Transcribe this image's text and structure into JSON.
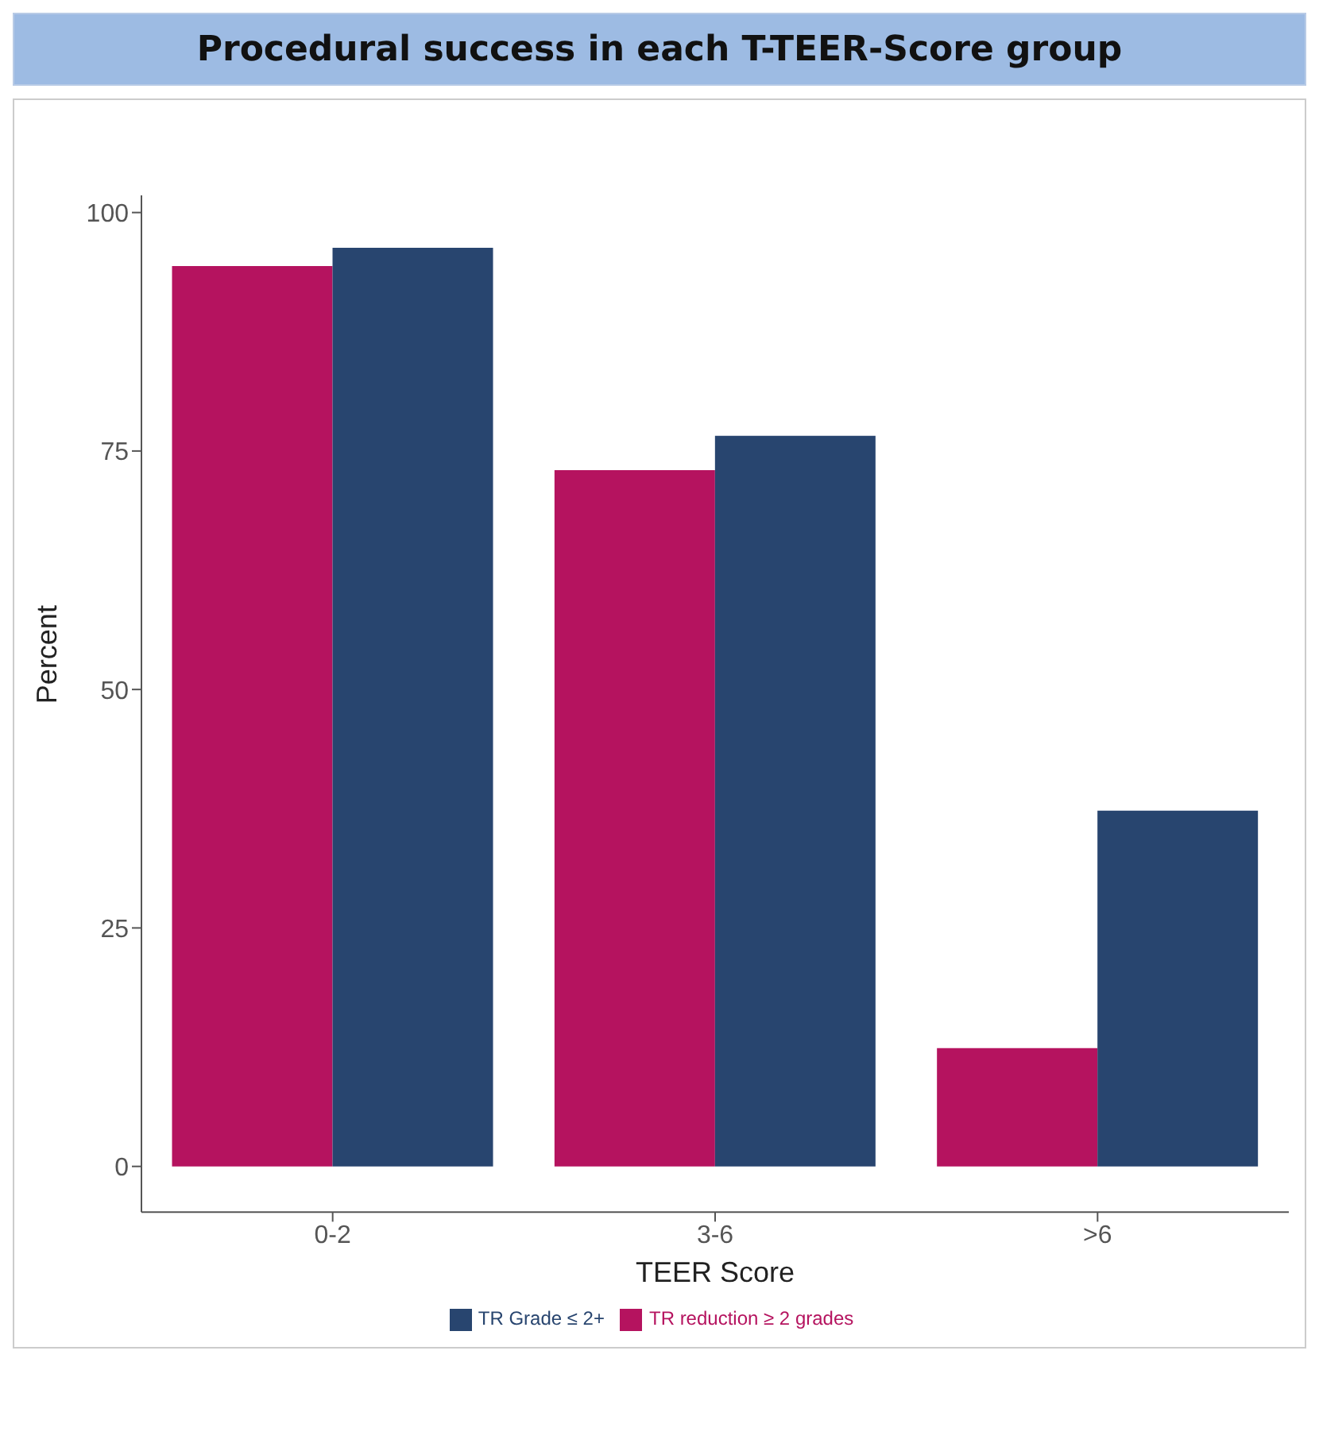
{
  "chart_data": {
    "type": "bar",
    "title": "Procedural success in each T-TEER-Score group",
    "xlabel": "TEER Score",
    "ylabel": "Percent",
    "categories": [
      "0-2",
      "3-6",
      ">6"
    ],
    "series": [
      {
        "name": "TR reduction ≥ 2 grades",
        "color": "#b5135f",
        "values": [
          94.4,
          73.0,
          12.4
        ]
      },
      {
        "name": "TR Grade ≤ 2+",
        "color": "#28456f",
        "values": [
          96.3,
          76.6,
          37.3
        ]
      }
    ],
    "ylim": [
      -4.8,
      101.8
    ],
    "yticks": [
      0,
      25,
      50,
      75,
      100
    ],
    "grid": false,
    "legend": "bottom"
  }
}
